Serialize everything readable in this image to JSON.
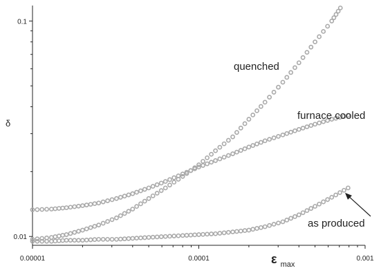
{
  "chart_data": {
    "type": "scatter",
    "title": "",
    "xlabel": "ε",
    "xlabel_subscript": "max",
    "ylabel": "δ",
    "x_scale": "log",
    "y_scale": "log",
    "xlim": [
      1e-05,
      0.001
    ],
    "ylim": [
      0.0091,
      0.118
    ],
    "x_tick_labels": [
      "0.00001",
      "0.0001",
      "0.001"
    ],
    "x_tick_values": [
      1e-05,
      0.0001,
      0.001
    ],
    "y_tick_labels": [
      "0.01",
      "0.1"
    ],
    "y_tick_values": [
      0.01,
      0.1
    ],
    "grid": false,
    "marker_color": "#a9a9a9",
    "series": [
      {
        "name": "quenched",
        "x": [
          1e-05,
          1.3e-05,
          1.6e-05,
          2e-05,
          2.5e-05,
          3.2e-05,
          4e-05,
          5e-05,
          6.3e-05,
          8e-05,
          0.0001,
          0.000126,
          0.00016,
          0.0002,
          0.00025,
          0.00032,
          0.0004,
          0.0005,
          0.00063,
          0.00071
        ],
        "y": [
          0.0097,
          0.0099,
          0.0102,
          0.0107,
          0.0113,
          0.0122,
          0.0134,
          0.015,
          0.0168,
          0.019,
          0.0215,
          0.025,
          0.029,
          0.035,
          0.042,
          0.052,
          0.064,
          0.08,
          0.1,
          0.115
        ]
      },
      {
        "name": "furnace cooled",
        "x": [
          1e-05,
          1.3e-05,
          1.6e-05,
          2e-05,
          2.5e-05,
          3.2e-05,
          4e-05,
          5e-05,
          6.3e-05,
          8e-05,
          0.0001,
          0.000126,
          0.00016,
          0.0002,
          0.00025,
          0.00032,
          0.0004,
          0.0005,
          0.00063,
          0.00079
        ],
        "y": [
          0.0133,
          0.0134,
          0.0136,
          0.0139,
          0.0143,
          0.015,
          0.0158,
          0.0168,
          0.018,
          0.0195,
          0.021,
          0.0225,
          0.0242,
          0.026,
          0.0278,
          0.0296,
          0.0314,
          0.0332,
          0.035,
          0.0365
        ]
      },
      {
        "name": "as produced",
        "x": [
          1e-05,
          1.3e-05,
          1.6e-05,
          2e-05,
          2.5e-05,
          3.2e-05,
          4e-05,
          5e-05,
          6.3e-05,
          8e-05,
          0.0001,
          0.000126,
          0.00016,
          0.0002,
          0.00025,
          0.00032,
          0.0004,
          0.0005,
          0.00063,
          0.00079
        ],
        "y": [
          0.0095,
          0.0095,
          0.0096,
          0.0096,
          0.0097,
          0.0097,
          0.0098,
          0.0099,
          0.01,
          0.0101,
          0.0102,
          0.0103,
          0.0105,
          0.0107,
          0.0111,
          0.0117,
          0.0126,
          0.0138,
          0.0152,
          0.0168
        ]
      }
    ],
    "annotations": [
      {
        "text": "quenched",
        "series": "quenched"
      },
      {
        "text": "furnace cooled",
        "series": "furnace cooled"
      },
      {
        "text": "as produced",
        "series": "as produced",
        "arrow": true
      }
    ]
  }
}
